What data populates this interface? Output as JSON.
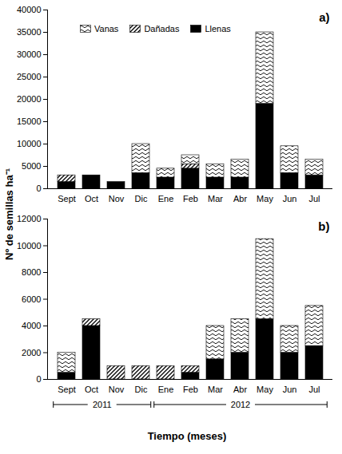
{
  "chart_data": [
    {
      "type": "bar",
      "stacked": true,
      "title": "a)",
      "ylabel": "Nº de semillas ha⁻¹",
      "categories": [
        "Sept",
        "Oct",
        "Nov",
        "Dic",
        "Ene",
        "Feb",
        "Mar",
        "Abr",
        "May",
        "Jun",
        "Jul"
      ],
      "series": [
        {
          "name": "Vanas",
          "color": "#000000",
          "values": [
            0,
            0,
            0,
            6500,
            2000,
            2000,
            3000,
            4000,
            16000,
            6000,
            3500
          ]
        },
        {
          "name": "Dañadas",
          "color": "#000000",
          "values": [
            1500,
            0,
            0,
            0,
            0,
            1000,
            0,
            0,
            0,
            0,
            0
          ]
        },
        {
          "name": "Llenas",
          "color": "#000000",
          "values": [
            1500,
            3000,
            1500,
            3500,
            2500,
            4500,
            2500,
            2500,
            19000,
            3500,
            3000
          ]
        }
      ],
      "ylim": [
        0,
        40000
      ],
      "yticks": [
        0,
        5000,
        10000,
        15000,
        20000,
        25000,
        30000,
        35000,
        40000
      ],
      "legend": "top"
    },
    {
      "type": "bar",
      "stacked": true,
      "title": "b)",
      "xlabel": "Tiempo (meses)",
      "categories": [
        "Sept",
        "Oct",
        "Nov",
        "Dic",
        "Ene",
        "Feb",
        "Mar",
        "Abr",
        "May",
        "Jun",
        "Jul"
      ],
      "series": [
        {
          "name": "Vanas",
          "color": "#000000",
          "values": [
            1500,
            0,
            0,
            0,
            0,
            0,
            2500,
            2500,
            6000,
            2000,
            3000
          ]
        },
        {
          "name": "Dañadas",
          "color": "#000000",
          "values": [
            0,
            500,
            1000,
            1000,
            1000,
            500,
            0,
            0,
            0,
            0,
            0
          ]
        },
        {
          "name": "Llenas",
          "color": "#000000",
          "values": [
            500,
            4000,
            0,
            0,
            0,
            500,
            1500,
            2000,
            4500,
            2000,
            2500
          ]
        }
      ],
      "ylim": [
        0,
        12000
      ],
      "yticks": [
        0,
        2000,
        4000,
        6000,
        8000,
        10000,
        12000
      ],
      "annotations": [
        {
          "text": "2011",
          "from": "Sept",
          "to": "Dic"
        },
        {
          "text": "2012",
          "from": "Ene",
          "to": "Jul"
        }
      ]
    }
  ]
}
